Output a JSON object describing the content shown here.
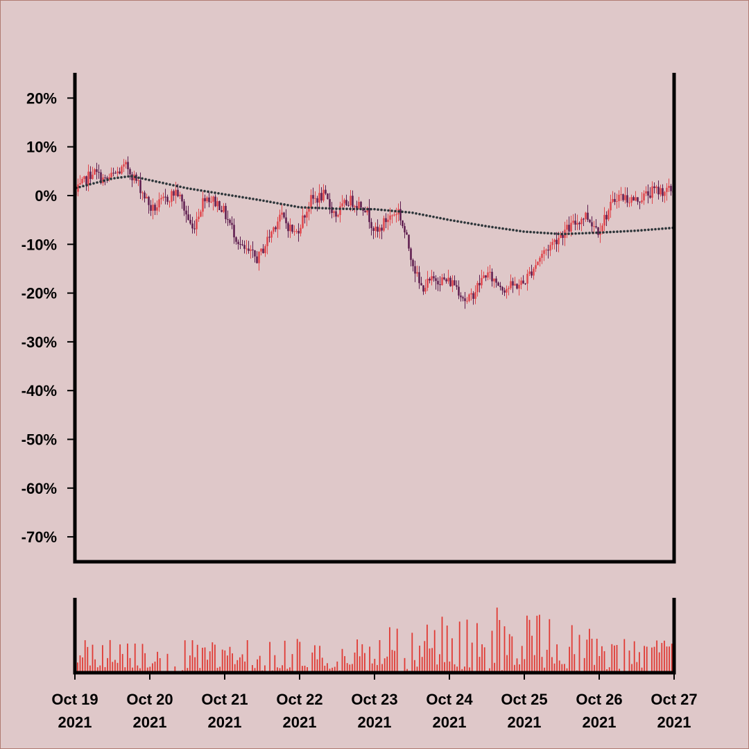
{
  "chart_data": {
    "type": "candlestick",
    "title": "",
    "xlabel": "",
    "ylabel": "",
    "ylim": [
      -75,
      25
    ],
    "yticks": [
      "20%",
      "10%",
      "0%",
      "-10%",
      "-20%",
      "-30%",
      "-40%",
      "-50%",
      "-60%",
      "-70%"
    ],
    "ytick_values": [
      20,
      10,
      0,
      -10,
      -20,
      -30,
      -40,
      -50,
      -60,
      -70
    ],
    "x_start": "2021-10-19",
    "x_end": "2021-10-27",
    "xtick_dates": [
      "2021-10-19",
      "2021-10-20",
      "2021-10-21",
      "2021-10-22",
      "2021-10-23",
      "2021-10-24",
      "2021-10-25",
      "2021-10-26",
      "2021-10-27"
    ],
    "xticks": [
      [
        "Oct 19",
        "2021"
      ],
      [
        "Oct 20",
        "2021"
      ],
      [
        "Oct 21",
        "2021"
      ],
      [
        "Oct 22",
        "2021"
      ],
      [
        "Oct 23",
        "2021"
      ],
      [
        "Oct 24",
        "2021"
      ],
      [
        "Oct 25",
        "2021"
      ],
      [
        "Oct 26",
        "2021"
      ],
      [
        "Oct 27",
        "2021"
      ]
    ],
    "path_keypoints": [
      [
        "2021-10-19",
        0
      ],
      [
        "2021-10-19T06:00",
        5
      ],
      [
        "2021-10-19T10:00",
        3
      ],
      [
        "2021-10-19T17:00",
        6
      ],
      [
        "2021-10-19T21:00",
        2
      ],
      [
        "2021-10-20T01:00",
        -3
      ],
      [
        "2021-10-20T05:00",
        -1
      ],
      [
        "2021-10-20T09:00",
        1
      ],
      [
        "2021-10-20T14:00",
        -7
      ],
      [
        "2021-10-20T18:00",
        0
      ],
      [
        "2021-10-20T23:00",
        -2
      ],
      [
        "2021-10-21T06:00",
        -11
      ],
      [
        "2021-10-21T11:00",
        -13
      ],
      [
        "2021-10-21T18:00",
        -4
      ],
      [
        "2021-10-21T23:00",
        -8
      ],
      [
        "2021-10-22T04:00",
        -1
      ],
      [
        "2021-10-22T08:00",
        0
      ],
      [
        "2021-10-22T12:00",
        -4
      ],
      [
        "2021-10-22T16:00",
        -1
      ],
      [
        "2021-10-22T21:00",
        -2
      ],
      [
        "2021-10-23T01:00",
        -8
      ],
      [
        "2021-10-23T04:00",
        -5
      ],
      [
        "2021-10-23T08:00",
        -3
      ],
      [
        "2021-10-23T15:00",
        -19
      ],
      [
        "2021-10-23T20:00",
        -17
      ],
      [
        "2021-10-24T02:00",
        -18
      ],
      [
        "2021-10-24T06:00",
        -22
      ],
      [
        "2021-10-24T12:00",
        -16
      ],
      [
        "2021-10-24T18:00",
        -19
      ],
      [
        "2021-10-25T00:00",
        -18
      ],
      [
        "2021-10-25T06:00",
        -12
      ],
      [
        "2021-10-25T12:00",
        -8
      ],
      [
        "2021-10-25T20:00",
        -4
      ],
      [
        "2021-10-26T00:00",
        -7
      ],
      [
        "2021-10-26T06:00",
        0
      ],
      [
        "2021-10-26T12:00",
        -1
      ],
      [
        "2021-10-26T18:00",
        1
      ],
      [
        "2021-10-27T00:00",
        1
      ]
    ],
    "moving_average_keypoints": [
      [
        "2021-10-19",
        1.5
      ],
      [
        "2021-10-19T12:00",
        3.5
      ],
      [
        "2021-10-19T18:00",
        4.0
      ],
      [
        "2021-10-20T12:00",
        1.5
      ],
      [
        "2021-10-21T12:00",
        -1.0
      ],
      [
        "2021-10-22T00:00",
        -2.4
      ],
      [
        "2021-10-22T12:00",
        -2.7
      ],
      [
        "2021-10-23T00:00",
        -2.8
      ],
      [
        "2021-10-23T12:00",
        -3.5
      ],
      [
        "2021-10-24T00:00",
        -5.0
      ],
      [
        "2021-10-24T12:00",
        -6.3
      ],
      [
        "2021-10-25T00:00",
        -7.4
      ],
      [
        "2021-10-25T12:00",
        -7.9
      ],
      [
        "2021-10-26T00:00",
        -7.6
      ],
      [
        "2021-10-26T12:00",
        -7.2
      ],
      [
        "2021-10-27T00:00",
        -6.6
      ]
    ],
    "volume": {
      "color": "#e03a34",
      "ylim": [
        0,
        1
      ]
    },
    "colors": {
      "up": "#e0454b",
      "down": "#5c1a4d",
      "moving_average": "#2b3438",
      "background": "#dfc8c9",
      "axis": "#000000"
    }
  }
}
